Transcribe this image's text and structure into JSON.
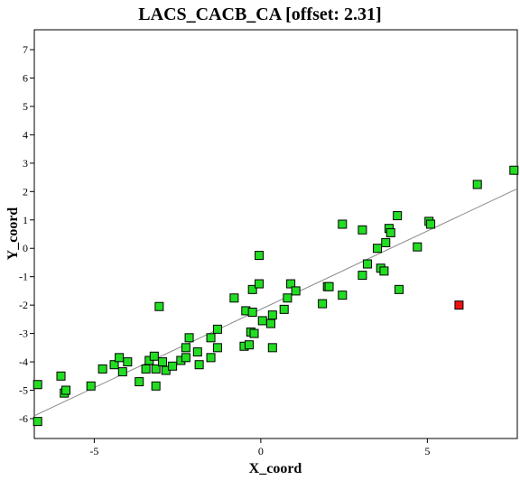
{
  "chart_data": {
    "type": "scatter",
    "title": "LACS_CACB_CA [offset: 2.31]",
    "xlabel": "X_coord",
    "ylabel": "Y_coord",
    "xlim": [
      -6.8,
      7.7
    ],
    "ylim": [
      -6.7,
      7.7
    ],
    "xticks": [
      -5,
      0,
      5
    ],
    "yticks": [
      -6,
      -5,
      -4,
      -3,
      -2,
      -1,
      0,
      1,
      2,
      3,
      4,
      5,
      6,
      7
    ],
    "grid": false,
    "legend": "none",
    "colors": {
      "normal": "#22dd22",
      "outlier": "#ee1111",
      "fit_line": "#888888"
    },
    "fit_line": {
      "x": [
        -6.8,
        7.7
      ],
      "y": [
        -5.9,
        2.1
      ]
    },
    "series": [
      {
        "points": [
          [
            -6.7,
            -4.8
          ],
          [
            -6.7,
            -6.1
          ],
          [
            -6.0,
            -4.5
          ],
          [
            -5.9,
            -5.1
          ],
          [
            -5.85,
            -5.0
          ],
          [
            -5.1,
            -4.85
          ],
          [
            -4.75,
            -4.25
          ],
          [
            -4.4,
            -4.1
          ],
          [
            -4.25,
            -3.85
          ],
          [
            -4.15,
            -4.35
          ],
          [
            -4.0,
            -4.0
          ],
          [
            -3.65,
            -4.7
          ],
          [
            -3.45,
            -4.25
          ],
          [
            -3.35,
            -3.95
          ],
          [
            -3.2,
            -3.8
          ],
          [
            -3.15,
            -4.25
          ],
          [
            -3.15,
            -4.85
          ],
          [
            -3.05,
            -2.05
          ],
          [
            -2.95,
            -4.0
          ],
          [
            -2.85,
            -4.3
          ],
          [
            -2.65,
            -4.15
          ],
          [
            -2.4,
            -3.95
          ],
          [
            -2.25,
            -3.85
          ],
          [
            -2.25,
            -3.5
          ],
          [
            -2.15,
            -3.15
          ],
          [
            -1.9,
            -3.65
          ],
          [
            -1.85,
            -4.1
          ],
          [
            -1.5,
            -3.85
          ],
          [
            -1.5,
            -3.15
          ],
          [
            -1.3,
            -3.5
          ],
          [
            -1.3,
            -2.85
          ],
          [
            -0.8,
            -1.75
          ],
          [
            -0.5,
            -3.45
          ],
          [
            -0.45,
            -2.2
          ],
          [
            -0.35,
            -3.4
          ],
          [
            -0.3,
            -2.95
          ],
          [
            -0.25,
            -2.25
          ],
          [
            -0.25,
            -1.45
          ],
          [
            -0.2,
            -3.0
          ],
          [
            -0.05,
            -1.25
          ],
          [
            -0.05,
            -0.25
          ],
          [
            0.05,
            -2.55
          ],
          [
            0.3,
            -2.65
          ],
          [
            0.35,
            -2.35
          ],
          [
            0.35,
            -3.5
          ],
          [
            0.7,
            -2.15
          ],
          [
            0.8,
            -1.75
          ],
          [
            0.9,
            -1.25
          ],
          [
            1.05,
            -1.5
          ],
          [
            1.85,
            -1.95
          ],
          [
            2.0,
            -1.35
          ],
          [
            2.05,
            -1.35
          ],
          [
            2.45,
            0.85
          ],
          [
            2.45,
            -1.65
          ],
          [
            3.05,
            0.65
          ],
          [
            3.05,
            -0.95
          ],
          [
            3.2,
            -0.55
          ],
          [
            3.5,
            0.0
          ],
          [
            3.6,
            -0.7
          ],
          [
            3.7,
            -0.8
          ],
          [
            3.75,
            0.2
          ],
          [
            3.85,
            0.7
          ],
          [
            3.9,
            0.55
          ],
          [
            4.1,
            1.15
          ],
          [
            4.15,
            -1.45
          ],
          [
            4.7,
            0.05
          ],
          [
            5.05,
            0.95
          ],
          [
            5.1,
            0.85
          ],
          [
            6.5,
            2.25
          ],
          [
            7.6,
            2.75
          ]
        ]
      },
      {
        "points": [
          [
            5.95,
            -2.0
          ]
        ]
      }
    ]
  }
}
